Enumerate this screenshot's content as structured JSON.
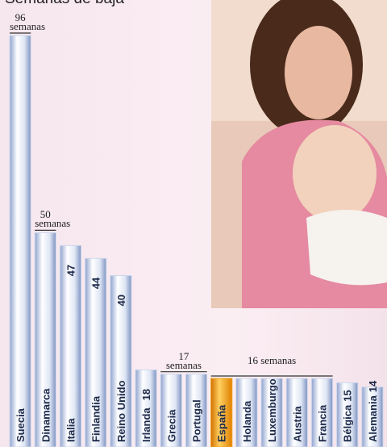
{
  "chart_data": {
    "type": "bar",
    "title": "Semanas de baja",
    "categories": [
      "Suecia",
      "Dinamarca",
      "Italia",
      "Finlandia",
      "Reino Unido",
      "Irlanda",
      "Grecia",
      "Portugal",
      "España",
      "Holanda",
      "Luxemburgo",
      "Austria",
      "Francia",
      "Bélgica",
      "Alemania"
    ],
    "values": [
      96,
      50,
      47,
      44,
      40,
      18,
      17,
      17,
      16,
      16,
      16,
      16,
      16,
      15,
      14
    ],
    "value_labels": [
      "96 semanas",
      "50 semanas",
      "47",
      "44",
      "40",
      "18",
      "17 semanas",
      null,
      "16 semanas",
      null,
      null,
      null,
      null,
      "15",
      "14"
    ],
    "colors": [
      "#cdd7ec",
      "#cdd7ec",
      "#cdd7ec",
      "#cdd7ec",
      "#cdd7ec",
      "#cdd7ec",
      "#cdd7ec",
      "#cdd7ec",
      "#f0a020",
      "#cdd7ec",
      "#cdd7ec",
      "#cdd7ec",
      "#cdd7ec",
      "#cdd7ec",
      "#cdd7ec"
    ]
  }
}
